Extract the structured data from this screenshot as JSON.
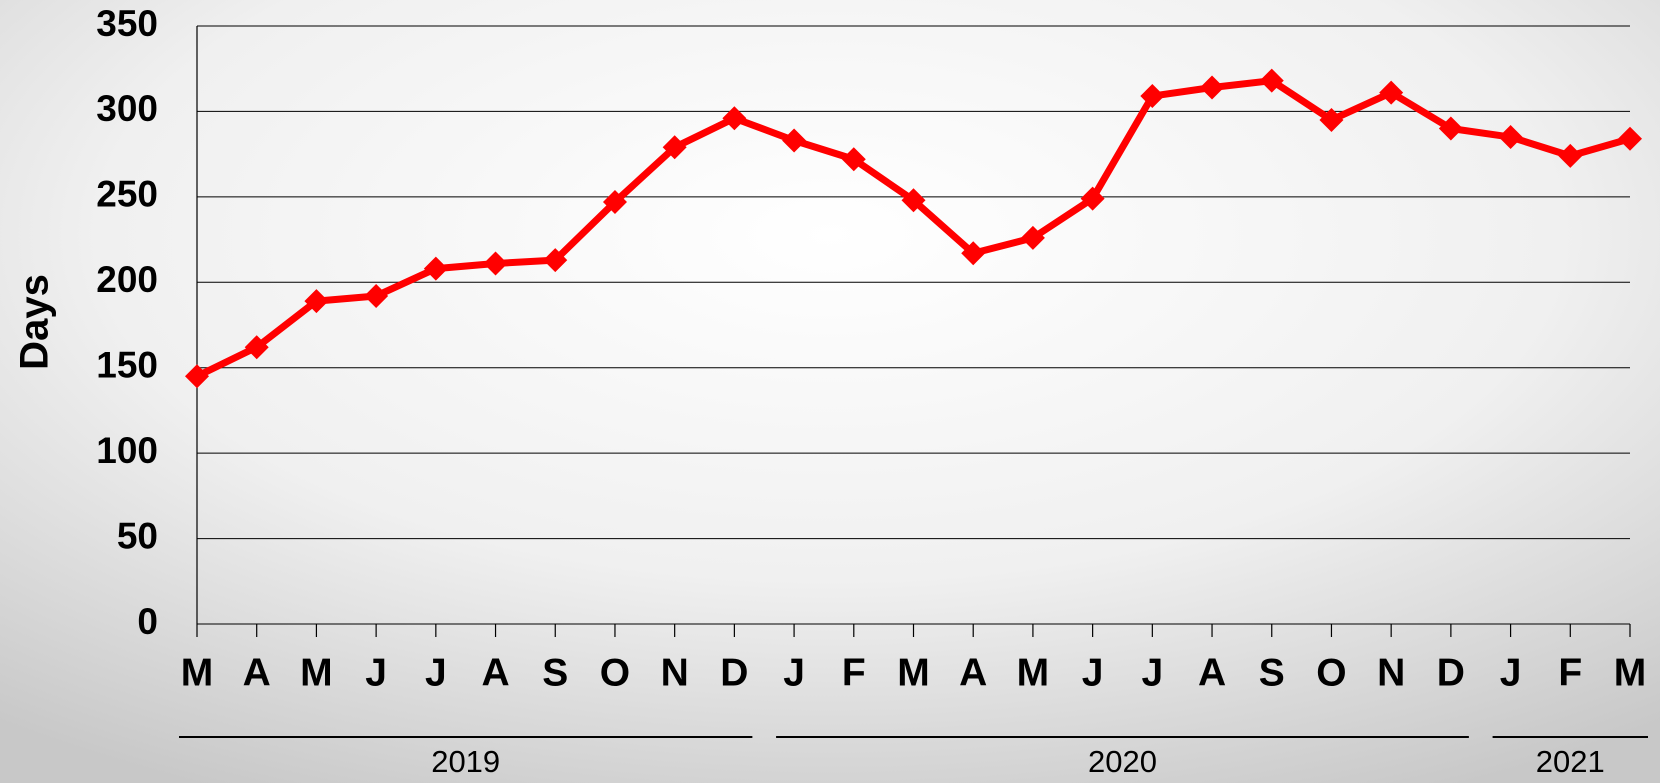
{
  "chart_data": {
    "type": "line",
    "y_label": "Days",
    "categories": [
      "M",
      "A",
      "M",
      "J",
      "J",
      "A",
      "S",
      "O",
      "N",
      "D",
      "J",
      "F",
      "M",
      "A",
      "M",
      "J",
      "J",
      "A",
      "S",
      "O",
      "N",
      "D",
      "J",
      "F",
      "M"
    ],
    "values": [
      145,
      162,
      189,
      192,
      208,
      211,
      213,
      247,
      279,
      296,
      283,
      272,
      248,
      217,
      226,
      249,
      309,
      314,
      318,
      295,
      311,
      290,
      285,
      274,
      284
    ],
    "color": "#ff0000",
    "year_labels": [
      "2019",
      "2020",
      "2021"
    ],
    "ylim": [
      0,
      350
    ],
    "yticks": [
      0,
      50,
      100,
      150,
      200,
      250,
      300,
      350
    ],
    "grid": true
  }
}
